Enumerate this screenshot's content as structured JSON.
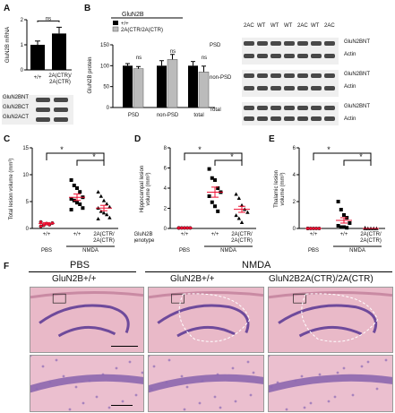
{
  "panels": {
    "A": {
      "label": "A",
      "ylabel": "GluN2B mRNA",
      "ylim": [
        0,
        2
      ],
      "yticks": [
        "0",
        "1",
        "2"
      ],
      "ns": "ns",
      "xlabels": [
        "+/+",
        "2A(CTR)/\n2A(CTR)"
      ],
      "blots": [
        "GluN2BNT",
        "GluN2BCT",
        "GluN2ACT"
      ]
    },
    "B": {
      "label": "B",
      "ylabel": "GluN2B protein",
      "ylim": [
        0,
        150
      ],
      "yticks": [
        "0",
        "50",
        "100",
        "150"
      ],
      "legend_title": "GluN2B",
      "legend": [
        "+/+",
        "2A(CTR/2A(CTR)"
      ],
      "ns": "ns",
      "xlabels": [
        "PSD",
        "non-PSD",
        "total"
      ],
      "lane_labels": [
        "2AC",
        "WT",
        "WT",
        "WT",
        "2AC",
        "WT",
        "2AC"
      ],
      "row_groups": [
        "PSD",
        "non-PSD",
        "Total"
      ],
      "right_labels": [
        "GluN2BNT",
        "Actin",
        "GluN2BNT",
        "Actin",
        "GluN2BNT",
        "Actin"
      ]
    },
    "C": {
      "label": "C",
      "ylabel": "Total lesion volume (mm³)",
      "ylim": [
        0,
        15
      ],
      "yticks": [
        "0",
        "5",
        "10",
        "15"
      ],
      "star": "*",
      "xlabels": [
        "+/+",
        "+/+",
        "2A(CTR/\n2A(CTR)"
      ],
      "groups": [
        "PBS",
        "NMDA"
      ]
    },
    "D": {
      "label": "D",
      "ylabel": "Hippocampal lesion\nvolume (mm³)",
      "ylim": [
        0,
        8
      ],
      "yticks": [
        "0",
        "2",
        "4",
        "6",
        "8"
      ],
      "star": "*",
      "xlabels": [
        "+/+",
        "+/+",
        "2A(CTR/\n2A(CTR)"
      ],
      "groups": [
        "PBS",
        "NMDA"
      ],
      "genotype_label": "GluN2B\ngenotype"
    },
    "E": {
      "label": "E",
      "ylabel": "Thalamic lesion\nvolume (mm³)",
      "ylim": [
        0,
        6
      ],
      "yticks": [
        "0",
        "2",
        "4",
        "6"
      ],
      "star": "*",
      "xlabels": [
        "+/+",
        "+/+",
        "2A(CTR/\n2A(CTR)"
      ],
      "groups": [
        "PBS",
        "NMDA"
      ]
    },
    "F": {
      "label": "F",
      "groups": [
        "PBS",
        "NMDA"
      ],
      "genotypes": [
        "GluN2B+/+",
        "GluN2B+/+",
        "GluN2B2A(CTR)/2A(CTR)"
      ]
    }
  },
  "chart_data": [
    {
      "type": "bar",
      "id": "A",
      "categories": [
        "+/+",
        "2A(CTR)/2A(CTR)"
      ],
      "values": [
        1.0,
        1.45
      ],
      "errors": [
        0.15,
        0.25
      ],
      "ylabel": "GluN2B mRNA",
      "ylim": [
        0,
        2
      ]
    },
    {
      "type": "bar",
      "id": "B",
      "categories": [
        "PSD",
        "non-PSD",
        "total"
      ],
      "series": [
        {
          "name": "+/+",
          "values": [
            100,
            100,
            100
          ],
          "errors": [
            5,
            12,
            10
          ]
        },
        {
          "name": "2A(CTR/2A(CTR)",
          "values": [
            93,
            115,
            85
          ],
          "errors": [
            5,
            12,
            14
          ]
        }
      ],
      "ylabel": "GluN2B protein",
      "ylim": [
        0,
        150
      ]
    },
    {
      "type": "scatter",
      "id": "C",
      "categories": [
        "+/+",
        "+/+",
        "2A(CTR/2A(CTR)"
      ],
      "groups": [
        {
          "points": [
            0.4,
            0.6,
            0.9,
            0.7,
            1.0,
            1.2
          ],
          "mean": 0.9,
          "sem": 0.2,
          "marker": "circle"
        },
        {
          "points": [
            9.0,
            8.0,
            7.5,
            6.8,
            5.8,
            5.5,
            5.2,
            4.8,
            4.5,
            3.8,
            3.5
          ],
          "mean": 5.8,
          "sem": 0.6,
          "marker": "square"
        },
        {
          "points": [
            6.8,
            6.0,
            5.2,
            4.6,
            4.0,
            3.8,
            3.2,
            2.9,
            2.6,
            2.0,
            1.8
          ],
          "mean": 3.8,
          "sem": 0.5,
          "marker": "triangle"
        }
      ],
      "ylabel": "Total lesion volume (mm³)",
      "ylim": [
        0,
        15
      ]
    },
    {
      "type": "scatter",
      "id": "D",
      "categories": [
        "+/+",
        "+/+",
        "2A(CTR/2A(CTR)"
      ],
      "groups": [
        {
          "points": [
            0.05,
            0.05,
            0.05,
            0.05,
            0.05,
            0.05
          ],
          "mean": 0.05,
          "sem": 0.0,
          "marker": "circle"
        },
        {
          "points": [
            5.9,
            5.0,
            4.8,
            4.0,
            3.6,
            3.2,
            2.6,
            2.2,
            1.7
          ],
          "mean": 3.6,
          "sem": 0.5,
          "marker": "square"
        },
        {
          "points": [
            3.4,
            3.0,
            2.3,
            1.9,
            1.6,
            1.3,
            1.0,
            0.6
          ],
          "mean": 1.9,
          "sem": 0.3,
          "marker": "triangle"
        }
      ],
      "ylabel": "Hippocampal lesion volume (mm³)",
      "ylim": [
        0,
        8
      ]
    },
    {
      "type": "scatter",
      "id": "E",
      "categories": [
        "+/+",
        "+/+",
        "2A(CTR/2A(CTR)"
      ],
      "groups": [
        {
          "points": [
            0,
            0,
            0,
            0,
            0,
            0
          ],
          "mean": 0,
          "sem": 0,
          "marker": "circle"
        },
        {
          "points": [
            2.0,
            1.4,
            1.0,
            0.8,
            0.4,
            0.2,
            0.1,
            0.1,
            0.05
          ],
          "mean": 0.6,
          "sem": 0.2,
          "marker": "square"
        },
        {
          "points": [
            0.05,
            0.0,
            0.0,
            0.0,
            0.0,
            0.0
          ],
          "mean": 0.0,
          "sem": 0.0,
          "marker": "triangle"
        }
      ],
      "ylabel": "Thalamic lesion volume (mm³)",
      "ylim": [
        0,
        6
      ]
    }
  ]
}
